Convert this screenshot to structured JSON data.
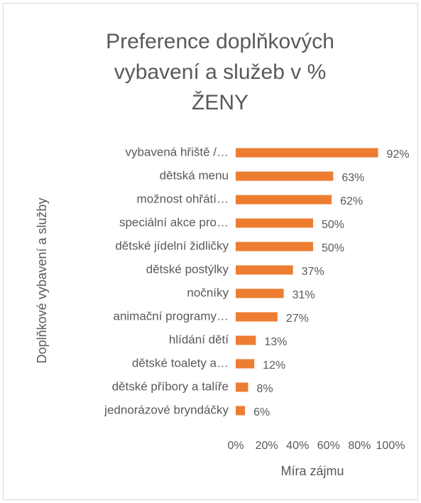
{
  "chart_data": {
    "type": "barh",
    "title": [
      "Preference doplňkových",
      "vybavení a služeb v %",
      "ŽENY"
    ],
    "xlabel": "Míra zájmu",
    "ylabel": "Doplňkové vybavení a služby",
    "categories": [
      "vybavená hřiště /…",
      "dětská menu",
      "možnost ohřátí…",
      "speciální akce pro…",
      "dětské jídelní židličky",
      "dětské postýlky",
      "nočníky",
      "animační programy…",
      "hlídání dětí",
      "dětské toalety a…",
      "dětské příbory a talíře",
      "jednorázové bryndáčky"
    ],
    "values": [
      92,
      63,
      62,
      50,
      50,
      37,
      31,
      27,
      13,
      12,
      8,
      6
    ],
    "value_labels": [
      "92%",
      "63%",
      "62%",
      "50%",
      "50%",
      "37%",
      "31%",
      "27%",
      "13%",
      "12%",
      "8%",
      "6%"
    ],
    "color": "#ed7d31",
    "xlim": [
      0,
      100
    ],
    "xticks": [
      {
        "value": 0,
        "label": "0%"
      },
      {
        "value": 20,
        "label": "20%"
      },
      {
        "value": 40,
        "label": "40%"
      },
      {
        "value": 60,
        "label": "60%"
      },
      {
        "value": 80,
        "label": "80%"
      },
      {
        "value": 100,
        "label": "100%"
      }
    ],
    "grid": false
  }
}
